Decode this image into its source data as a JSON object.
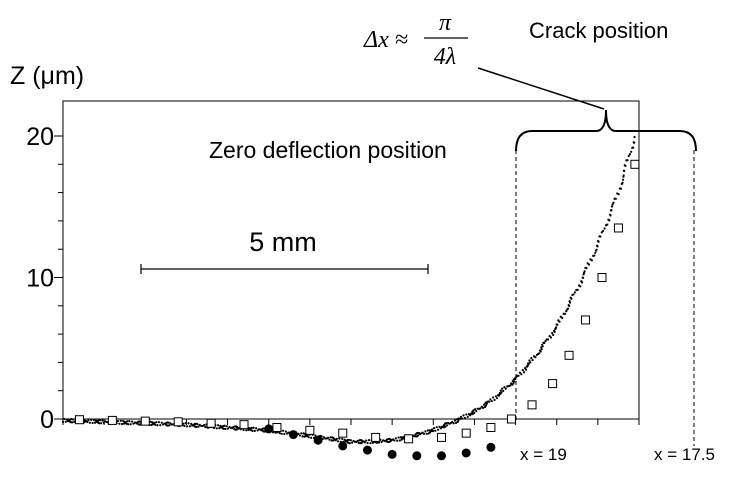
{
  "chart_data": {
    "type": "scatter",
    "title": "",
    "ylabel": "Z (μm)",
    "xlabel": "",
    "ylim": [
      0,
      20
    ],
    "yticks": [
      "0",
      "10",
      "20"
    ],
    "x_units": "mm",
    "xlim": [
      0,
      14
    ],
    "grid": false,
    "legend": "none",
    "annotations": {
      "scale_bar": {
        "label": "5 mm",
        "length": 5
      },
      "zero_deflection": "Zero deflection position",
      "crack_position": "Crack position",
      "delta_formula": {
        "lhs": "Δx ≈",
        "numerator": "π",
        "denominator": "4λ"
      },
      "x19": "x = 19",
      "x175": "x = 17.5"
    },
    "series": [
      {
        "marker": "dot",
        "x": [
          0.0,
          0.5,
          1.0,
          1.5,
          2.0,
          2.5,
          3.0,
          3.5,
          4.0,
          4.5,
          5.0,
          5.5,
          6.0,
          6.5,
          7.0,
          7.5,
          8.0,
          8.5,
          9.0,
          9.5,
          10.0,
          10.5,
          11.0,
          11.5,
          12.0,
          12.5,
          13.0,
          13.5,
          13.9
        ],
        "y": [
          -0.1,
          -0.15,
          -0.2,
          -0.25,
          -0.3,
          -0.35,
          -0.4,
          -0.5,
          -0.6,
          -0.7,
          -0.8,
          -1.0,
          -1.2,
          -1.4,
          -1.6,
          -1.6,
          -1.5,
          -1.2,
          -0.8,
          -0.2,
          0.5,
          1.5,
          2.8,
          4.5,
          6.5,
          9.2,
          12.3,
          16.0,
          20.0
        ]
      },
      {
        "marker": "open-square",
        "x": [
          0.4,
          1.2,
          2.0,
          2.8,
          3.6,
          4.4,
          5.2,
          6.0,
          6.8,
          7.6,
          8.4,
          9.2,
          9.8,
          10.4,
          10.9,
          11.4,
          11.9,
          12.3,
          12.7,
          13.1,
          13.5,
          13.9
        ],
        "y": [
          -0.05,
          -0.1,
          -0.15,
          -0.2,
          -0.3,
          -0.4,
          -0.6,
          -0.8,
          -1.0,
          -1.3,
          -1.4,
          -1.3,
          -1.0,
          -0.6,
          0.0,
          1.0,
          2.5,
          4.5,
          7.0,
          10.0,
          13.5,
          18.0
        ]
      },
      {
        "marker": "filled-circle",
        "x": [
          5.0,
          5.6,
          6.2,
          6.8,
          7.4,
          8.0,
          8.6,
          9.2,
          9.8,
          10.4
        ],
        "y": [
          -0.7,
          -1.1,
          -1.5,
          -1.9,
          -2.2,
          -2.5,
          -2.6,
          -2.6,
          -2.4,
          -2.0
        ]
      }
    ]
  }
}
